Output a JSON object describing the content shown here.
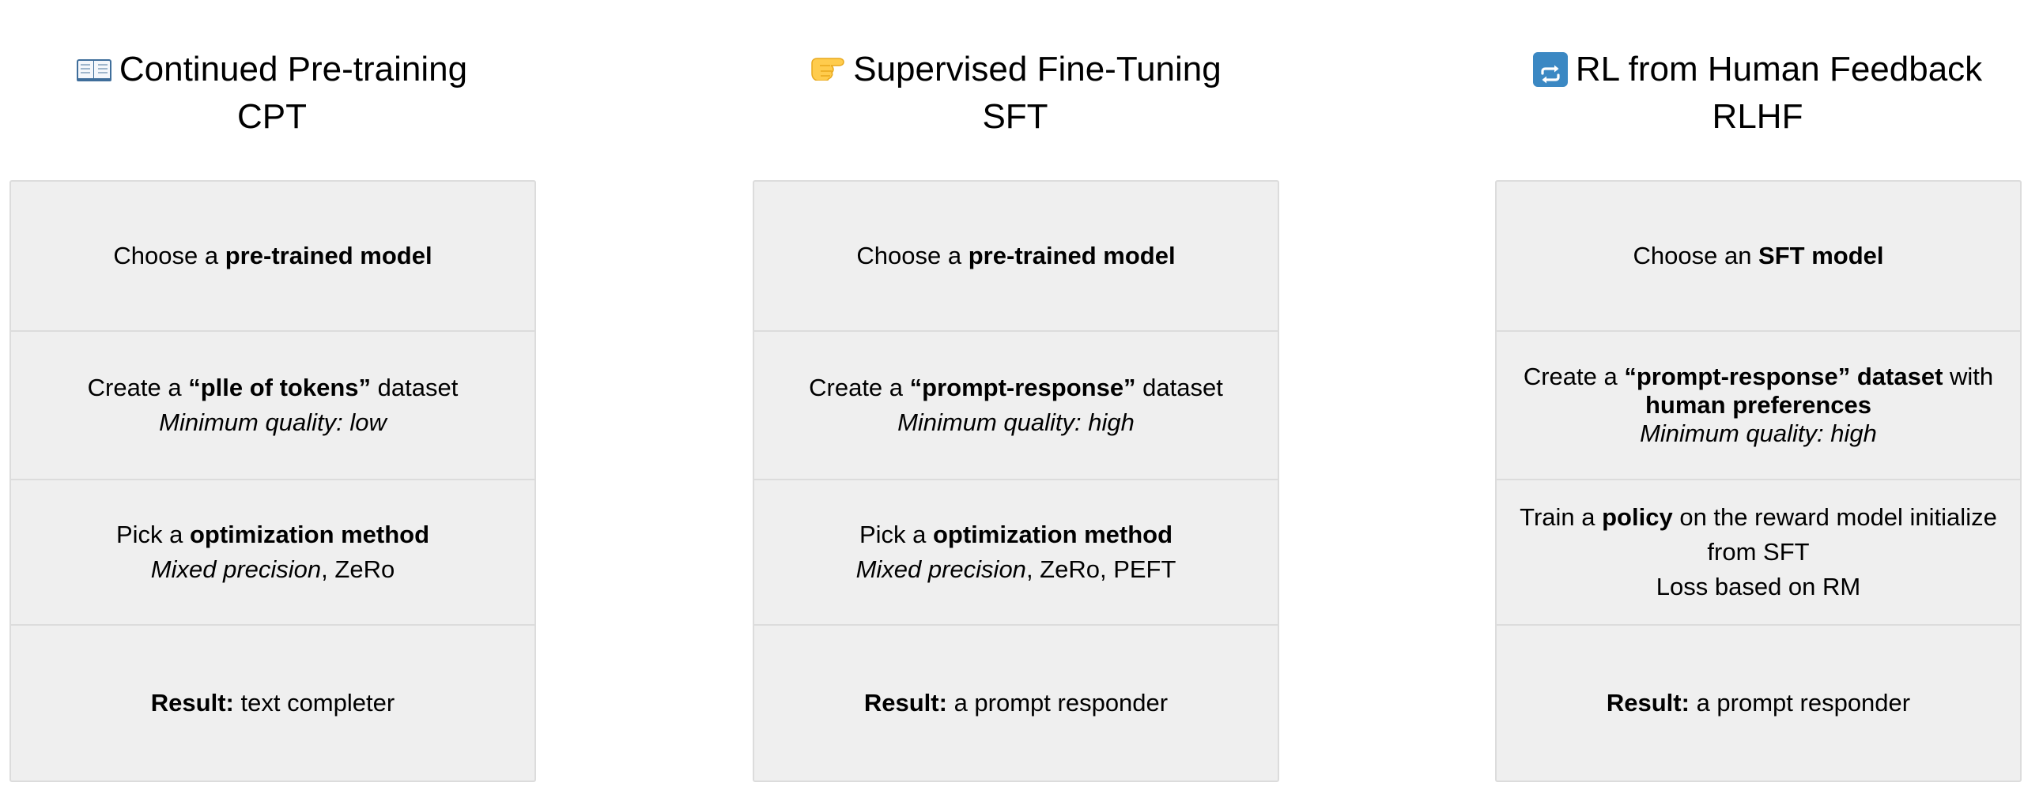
{
  "columns": [
    {
      "title": "Continued Pre-training",
      "abbr": "CPT",
      "icon": "open-book-icon",
      "model": {
        "pre": "Choose a ",
        "bold": "pre-trained model"
      },
      "dataset": {
        "pre": "Create a ",
        "bold": "“plle of tokens”",
        "post": " dataset",
        "quality": "Minimum quality: low"
      },
      "optimization": {
        "pre": "Pick a ",
        "bold": "optimization method",
        "method_italic": "Mixed precision",
        "method_rest": ", ZeRo"
      },
      "result": {
        "label": "Result:",
        "value": " text completer"
      }
    },
    {
      "title": "Supervised Fine-Tuning",
      "abbr": "SFT",
      "icon": "pointing-hand-icon",
      "model": {
        "pre": "Choose a ",
        "bold": "pre-trained model"
      },
      "dataset": {
        "pre": "Create a ",
        "bold": "“prompt-response”",
        "post": " dataset",
        "quality": "Minimum quality: high"
      },
      "optimization": {
        "pre": "Pick a ",
        "bold": "optimization method",
        "method_italic": "Mixed precision",
        "method_rest": ", ZeRo, PEFT"
      },
      "result": {
        "label": "Result:",
        "value": " a prompt responder"
      }
    },
    {
      "title": "RL from Human Feedback",
      "abbr": "RLHF",
      "icon": "repeat-arrows-icon",
      "model": {
        "pre": "Choose an ",
        "bold": "SFT model"
      },
      "dataset": {
        "pre": "Create a ",
        "bold": "“prompt-response” dataset",
        "post": " with",
        "bold2": "human preferences",
        "quality": "Minimum quality: high"
      },
      "policy": {
        "pre": "Train a ",
        "bold": "policy",
        "post": " on the reward model initialize from SFT",
        "loss": "Loss based on RM"
      },
      "result": {
        "label": "Result:",
        "value": " a prompt responder"
      }
    }
  ],
  "colors": {
    "cell_background": "#efefef",
    "cell_border": "#dcdcdc",
    "repeat_icon_blue": "#3b88c3",
    "hand_yellow": "#ffcc4d"
  }
}
